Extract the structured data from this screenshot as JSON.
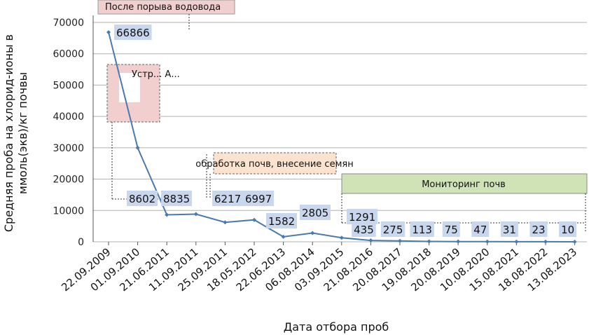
{
  "chart_data": {
    "type": "line",
    "categories": [
      "22.09.2009",
      "01.09.2010",
      "21.06.2011",
      "11.09.2011",
      "25.09.2011",
      "18.05.2012",
      "22.06.2013",
      "06.08.2014",
      "03.09.2015",
      "21.08.2016",
      "20.08.2017",
      "19.08.2018",
      "20.08.2019",
      "10.08.2020",
      "15.08.2021",
      "18.08.2022",
      "13.08.2023"
    ],
    "values": [
      66866,
      30000,
      8602,
      8835,
      6217,
      6997,
      1582,
      2805,
      1291,
      435,
      275,
      113,
      75,
      47,
      31,
      23,
      10
    ],
    "data_labels": [
      "66866",
      "",
      "8602",
      "8835",
      "6217",
      "6997",
      "1582",
      "2805",
      "1291",
      "435",
      "275",
      "113",
      "75",
      "47",
      "31",
      "23",
      "10"
    ],
    "y_ticks": [
      "70000",
      "60000",
      "50000",
      "40000",
      "30000",
      "20000",
      "10000",
      "0"
    ],
    "ylim": [
      0,
      70000
    ],
    "xlabel": "Дата отбора проб",
    "ylabel": "Средняя проба на хлорид-ионы в ммоль(экв)/кг почвы",
    "grid": true,
    "series_color": "#4a7aad",
    "annotations": [
      {
        "text": "После порыва водовода",
        "color": "#f2cfcf"
      },
      {
        "text": "обработка почв, внесение семян",
        "color": "#fbe3cf"
      },
      {
        "text": "Мониторинг почв",
        "color": "#cfe3b6"
      },
      {
        "text": "Устр... А...",
        "color": "#f2cfcf"
      }
    ]
  }
}
